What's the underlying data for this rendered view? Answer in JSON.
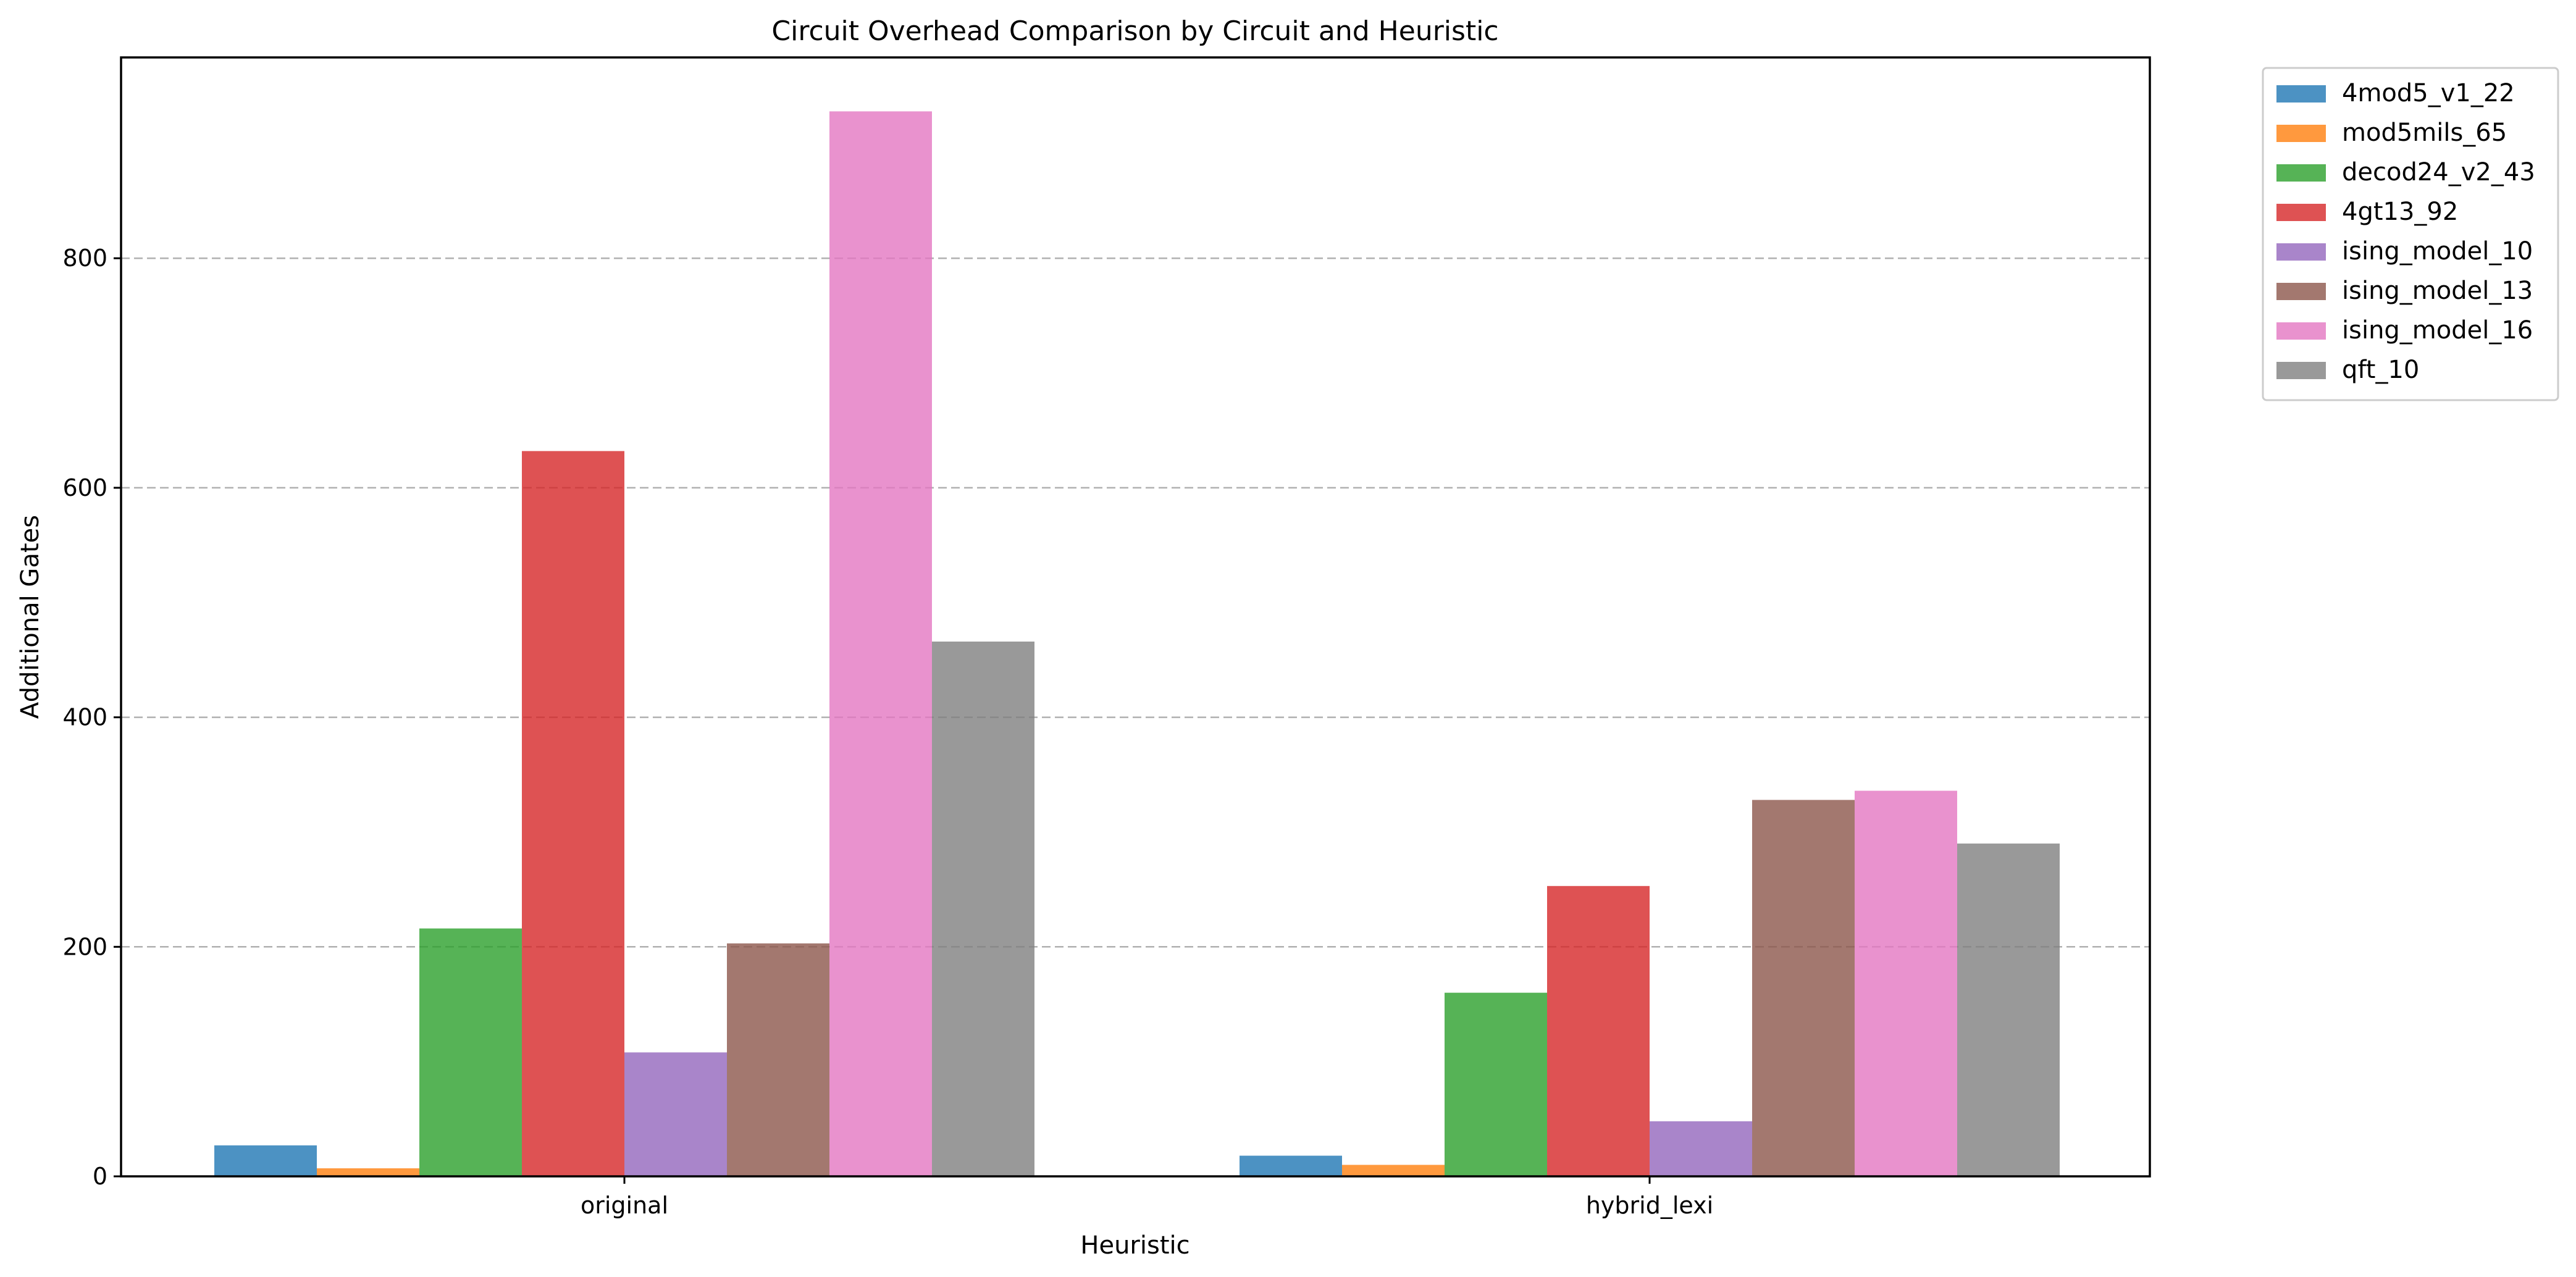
{
  "chart_data": {
    "type": "bar",
    "title": "Circuit Overhead Comparison by Circuit and Heuristic",
    "xlabel": "Heuristic",
    "ylabel": "Additional Gates",
    "categories": [
      "original",
      "hybrid_lexi"
    ],
    "ylim": [
      0,
      975
    ],
    "yticks": [
      0,
      200,
      400,
      600,
      800
    ],
    "ytick_labels": [
      "0",
      "200",
      "400",
      "600",
      "800"
    ],
    "grid": "y-dashed",
    "legend_position": "outside-top-right",
    "series": [
      {
        "name": "4mod5_v1_22",
        "color": "#1f77b4",
        "values": [
          27,
          18
        ]
      },
      {
        "name": "mod5mils_65",
        "color": "#ff7f0e",
        "values": [
          7,
          10
        ]
      },
      {
        "name": "decod24_v2_43",
        "color": "#2ca02c",
        "values": [
          216,
          160
        ]
      },
      {
        "name": "4gt13_92",
        "color": "#d62728",
        "values": [
          632,
          253
        ]
      },
      {
        "name": "ising_model_10",
        "color": "#9467bd",
        "values": [
          108,
          48
        ]
      },
      {
        "name": "ising_model_13",
        "color": "#8c564b",
        "values": [
          203,
          328
        ]
      },
      {
        "name": "ising_model_16",
        "color": "#e377c2",
        "values": [
          928,
          336
        ]
      },
      {
        "name": "qft_10",
        "color": "#7f7f7f",
        "values": [
          466,
          290
        ]
      }
    ]
  }
}
